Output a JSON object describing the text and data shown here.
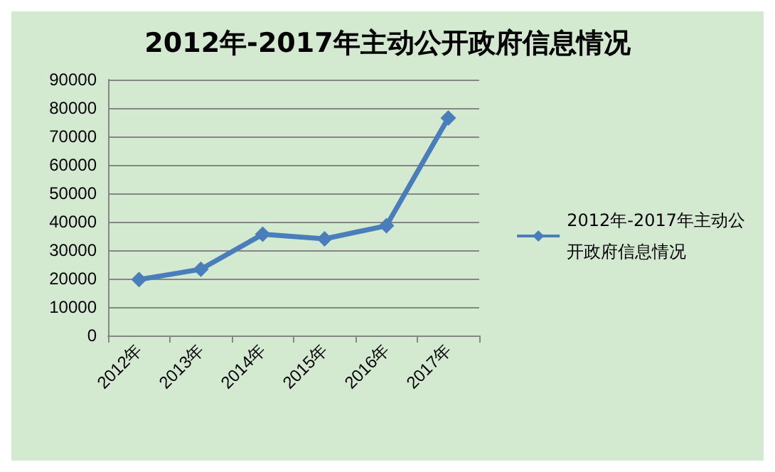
{
  "chart_data": {
    "type": "line",
    "title": "2012年-2017年主动公开政府信息情况",
    "categories": [
      "2012年",
      "2013年",
      "2014年",
      "2015年",
      "2016年",
      "2017年"
    ],
    "series": [
      {
        "name": "2012年-2017年主动公开政府信息情况",
        "color": "#4a7ebb",
        "values": [
          19700,
          23300,
          35600,
          34000,
          38600,
          76500
        ]
      }
    ],
    "ylim": [
      0,
      90000
    ],
    "yticks": [
      0,
      10000,
      20000,
      30000,
      40000,
      50000,
      60000,
      70000,
      80000,
      90000
    ],
    "grid": "y",
    "legend": "right",
    "marker": "diamond",
    "line_style": "solid"
  }
}
